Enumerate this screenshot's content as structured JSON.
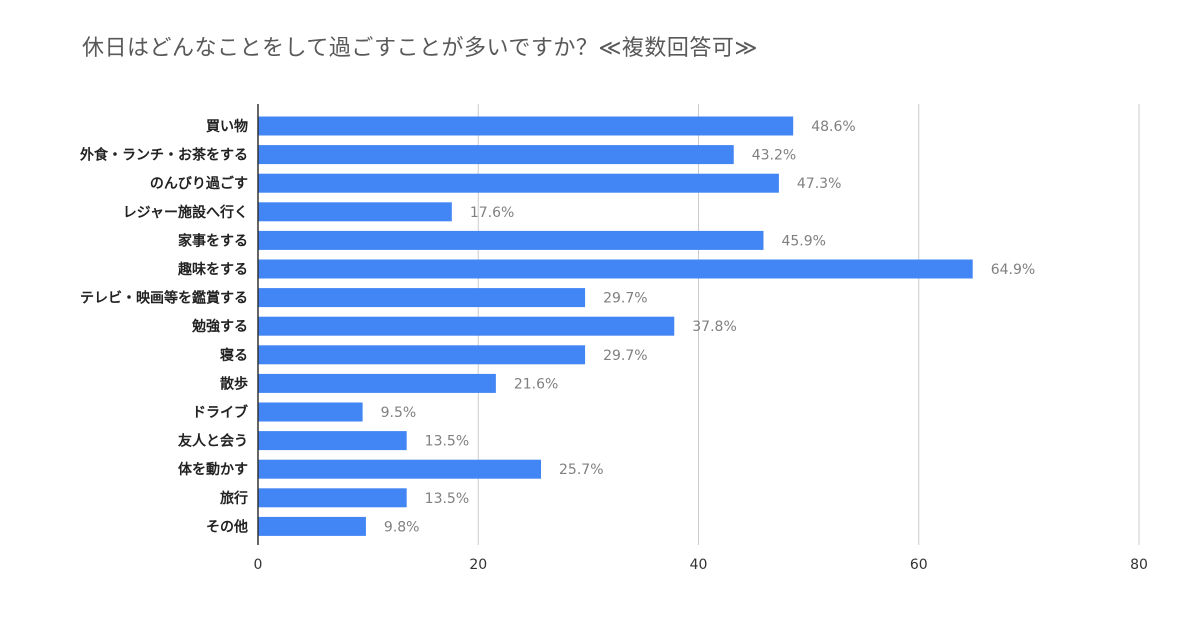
{
  "chart_data": {
    "type": "bar",
    "orientation": "horizontal",
    "title": "休日はどんなことをして過ごすことが多いですか？≪複数回答可≫",
    "categories": [
      "買い物",
      "外食・ランチ・お茶をする",
      "のんびり過ごす",
      "レジャー施設へ行く",
      "家事をする",
      "趣味をする",
      "テレビ・映画等を鑑賞する",
      "勉強する",
      "寝る",
      "散歩",
      "ドライブ",
      "友人と会う",
      "体を動かす",
      "旅行",
      "その他"
    ],
    "values": [
      48.6,
      43.2,
      47.3,
      17.6,
      45.9,
      64.9,
      29.7,
      37.8,
      29.7,
      21.6,
      9.5,
      13.5,
      25.7,
      13.5,
      9.8
    ],
    "value_labels": [
      "48.6%",
      "43.2%",
      "47.3%",
      "17.6%",
      "45.9%",
      "64.9%",
      "29.7%",
      "37.8%",
      "29.7%",
      "21.6%",
      "9.5%",
      "13.5%",
      "25.7%",
      "13.5%",
      "9.8%"
    ],
    "xlim": [
      0,
      80
    ],
    "xticks": [
      0,
      20,
      40,
      60,
      80
    ],
    "xlabel": "",
    "ylabel": "",
    "grid": true,
    "bar_color": "#4285f4",
    "gridline_color": "#cccccc",
    "axis_color": "#333333"
  }
}
